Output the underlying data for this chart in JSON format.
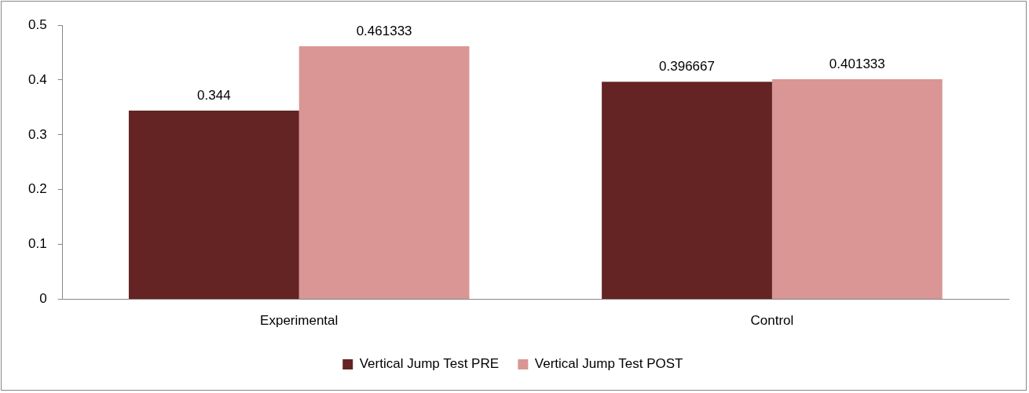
{
  "chart_data": {
    "type": "bar",
    "categories": [
      "Experimental",
      "Control"
    ],
    "series": [
      {
        "name": "Vertical Jump Test PRE",
        "color": "#632423",
        "values": [
          0.344,
          0.396667
        ]
      },
      {
        "name": "Vertical Jump Test POST",
        "color": "#d99694",
        "values": [
          0.461333,
          0.401333
        ]
      }
    ],
    "ylim": [
      0,
      0.5
    ],
    "yticks": [
      0,
      0.1,
      0.2,
      0.3,
      0.4,
      0.5
    ],
    "grid": false,
    "legend": "bottom",
    "data_labels": true
  }
}
